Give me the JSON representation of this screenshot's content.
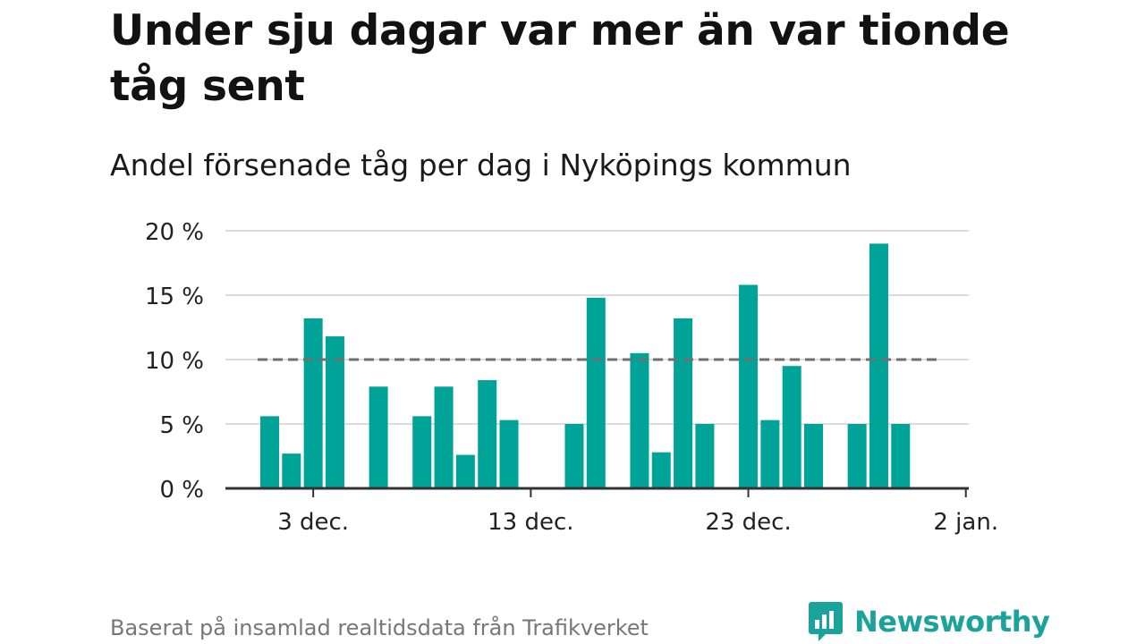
{
  "title": "Under sju dagar var mer än var tionde tåg sent",
  "subtitle": "Andel försenade tåg per dag i Nyköpings kommun",
  "source": "Baserat på insamlad realtidsdata från Trafikverket",
  "brand": {
    "name": "Newsworthy",
    "icon": "bar-chart-speech-bubble-icon",
    "color": "#1aa39a"
  },
  "chart_data": {
    "type": "bar",
    "y_unit": "%",
    "ylim": [
      0,
      20
    ],
    "y_ticks": [
      0,
      5,
      10,
      15,
      20
    ],
    "y_tick_labels": [
      "0 %",
      "5 %",
      "10 %",
      "15 %",
      "20 %"
    ],
    "x_tick_labels": [
      "3 dec.",
      "13 dec.",
      "23 dec.",
      "2 jan."
    ],
    "x_tick_dates": [
      "2019-12-03",
      "2019-12-13",
      "2019-12-23",
      "2020-01-02"
    ],
    "grid": true,
    "bar_color": "#00a398",
    "reference_line": {
      "value": 10,
      "style": "dashed",
      "color": "#707070"
    },
    "dates": [
      "2019-12-01",
      "2019-12-02",
      "2019-12-03",
      "2019-12-04",
      "2019-12-05",
      "2019-12-06",
      "2019-12-07",
      "2019-12-08",
      "2019-12-09",
      "2019-12-10",
      "2019-12-11",
      "2019-12-12",
      "2019-12-13",
      "2019-12-14",
      "2019-12-15",
      "2019-12-16",
      "2019-12-17",
      "2019-12-18",
      "2019-12-19",
      "2019-12-20",
      "2019-12-21",
      "2019-12-22",
      "2019-12-23",
      "2019-12-24",
      "2019-12-25",
      "2019-12-26",
      "2019-12-27",
      "2019-12-28",
      "2019-12-29",
      "2019-12-30",
      "2019-12-31",
      "2020-01-01"
    ],
    "values": [
      5.6,
      2.7,
      13.2,
      11.8,
      null,
      7.9,
      null,
      5.6,
      7.9,
      2.6,
      8.4,
      5.3,
      null,
      null,
      5.0,
      14.8,
      null,
      10.5,
      2.8,
      13.2,
      5.0,
      null,
      15.8,
      5.3,
      9.5,
      5.0,
      null,
      5.0,
      19.0,
      5.0,
      null,
      null
    ]
  }
}
